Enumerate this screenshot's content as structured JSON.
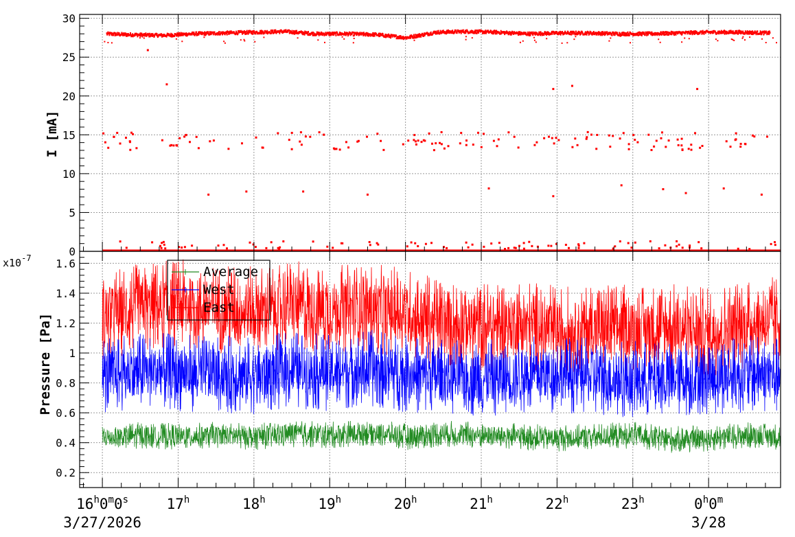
{
  "chart_data": [
    {
      "type": "scatter",
      "ylabel": "I [mA]",
      "ylim": [
        0,
        30.5
      ],
      "yticks": [
        0,
        5,
        10,
        15,
        20,
        25,
        30
      ],
      "grid": true,
      "series": [
        {
          "color": "#ff0000",
          "x": [
            16.05,
            16.3,
            16.8,
            17.2,
            17.6,
            18.0,
            18.4,
            18.8,
            19.2,
            19.6,
            20.0,
            20.4,
            20.8,
            21.2,
            21.6,
            22.0,
            22.4,
            22.8,
            23.2,
            23.6,
            24.0,
            24.4,
            24.8
          ],
          "y": [
            28.0,
            27.9,
            27.8,
            28.0,
            28.1,
            28.2,
            28.3,
            28.0,
            28.0,
            27.9,
            27.5,
            28.2,
            28.3,
            28.2,
            28.0,
            28.1,
            28.1,
            28.0,
            28.0,
            28.1,
            28.2,
            28.2,
            28.1
          ],
          "outliers": {
            "x": [
              16.85,
              21.95,
              22.2,
              23.85,
              16.6,
              17.4,
              17.9,
              18.65,
              19.5,
              21.1,
              21.95,
              22.85,
              23.4,
              23.7,
              24.2,
              24.7
            ],
            "y": [
              21.5,
              20.9,
              21.3,
              20.9,
              25.9,
              7.3,
              7.7,
              7.7,
              7.3,
              8.1,
              7.1,
              8.5,
              8.0,
              7.5,
              8.1,
              7.3
            ]
          }
        }
      ]
    },
    {
      "type": "line",
      "ylabel": "Pressure [Pa]",
      "yscale_label": "x10",
      "yscale_exp": "-7",
      "ylim": [
        0.1,
        1.68
      ],
      "yticks": [
        0.2,
        0.4,
        0.6,
        0.8,
        1,
        1.2,
        1.4,
        1.6
      ],
      "ytick_labels": [
        "0.2",
        "0.4",
        "0.6",
        "0.8",
        "1",
        "1.2",
        "1.4",
        "1.6"
      ],
      "grid": true,
      "legend_position": "top-left",
      "series": [
        {
          "name": "Average",
          "color": "#228b22",
          "x": [
            16.0,
            16.5,
            17.0,
            17.5,
            18.0,
            18.5,
            19.0,
            19.5,
            20.0,
            20.5,
            21.0,
            21.5,
            22.0,
            22.5,
            23.0,
            23.5,
            24.0,
            24.5,
            24.95
          ],
          "y": [
            0.43,
            0.45,
            0.44,
            0.45,
            0.44,
            0.46,
            0.45,
            0.47,
            0.44,
            0.46,
            0.45,
            0.44,
            0.43,
            0.44,
            0.45,
            0.42,
            0.43,
            0.45,
            0.44
          ]
        },
        {
          "name": "West",
          "color": "#0000ff",
          "x": [
            16.0,
            16.5,
            17.0,
            17.5,
            18.0,
            18.5,
            19.0,
            19.5,
            20.0,
            20.5,
            21.0,
            21.5,
            22.0,
            22.5,
            23.0,
            23.5,
            24.0,
            24.5,
            24.95
          ],
          "y": [
            0.85,
            0.88,
            0.87,
            0.86,
            0.85,
            0.89,
            0.87,
            0.9,
            0.86,
            0.84,
            0.83,
            0.85,
            0.86,
            0.84,
            0.82,
            0.83,
            0.84,
            0.86,
            0.85
          ]
        },
        {
          "name": "East",
          "color": "#ff0000",
          "x": [
            16.0,
            16.5,
            17.0,
            17.5,
            18.0,
            18.5,
            19.0,
            19.5,
            20.0,
            20.5,
            21.0,
            21.5,
            22.0,
            22.5,
            23.0,
            23.5,
            24.0,
            24.5,
            24.95
          ],
          "y": [
            1.25,
            1.3,
            1.33,
            1.3,
            1.28,
            1.32,
            1.29,
            1.3,
            1.27,
            1.2,
            1.18,
            1.2,
            1.15,
            1.17,
            1.16,
            1.17,
            1.14,
            1.2,
            1.22
          ]
        }
      ]
    }
  ],
  "x_axis": {
    "xlim": [
      15.7,
      24.95
    ],
    "ticks": [
      {
        "value": 16,
        "main": "16",
        "sup": [
          "h",
          "m",
          "s"
        ],
        "mid": [
          "0",
          "0"
        ]
      },
      {
        "value": 17,
        "main": "17",
        "sup": [
          "h"
        ],
        "mid": []
      },
      {
        "value": 18,
        "main": "18",
        "sup": [
          "h"
        ],
        "mid": []
      },
      {
        "value": 19,
        "main": "19",
        "sup": [
          "h"
        ],
        "mid": []
      },
      {
        "value": 20,
        "main": "20",
        "sup": [
          "h"
        ],
        "mid": []
      },
      {
        "value": 21,
        "main": "21",
        "sup": [
          "h"
        ],
        "mid": []
      },
      {
        "value": 22,
        "main": "22",
        "sup": [
          "h"
        ],
        "mid": []
      },
      {
        "value": 23,
        "main": "23",
        "sup": [
          "h"
        ],
        "mid": []
      },
      {
        "value": 24,
        "main": "0",
        "sup": [
          "h",
          "m"
        ],
        "mid": [
          "0"
        ]
      }
    ],
    "date_labels": [
      {
        "value": 16,
        "text": "3/27/2026"
      },
      {
        "value": 24,
        "text": "3/28"
      }
    ]
  }
}
